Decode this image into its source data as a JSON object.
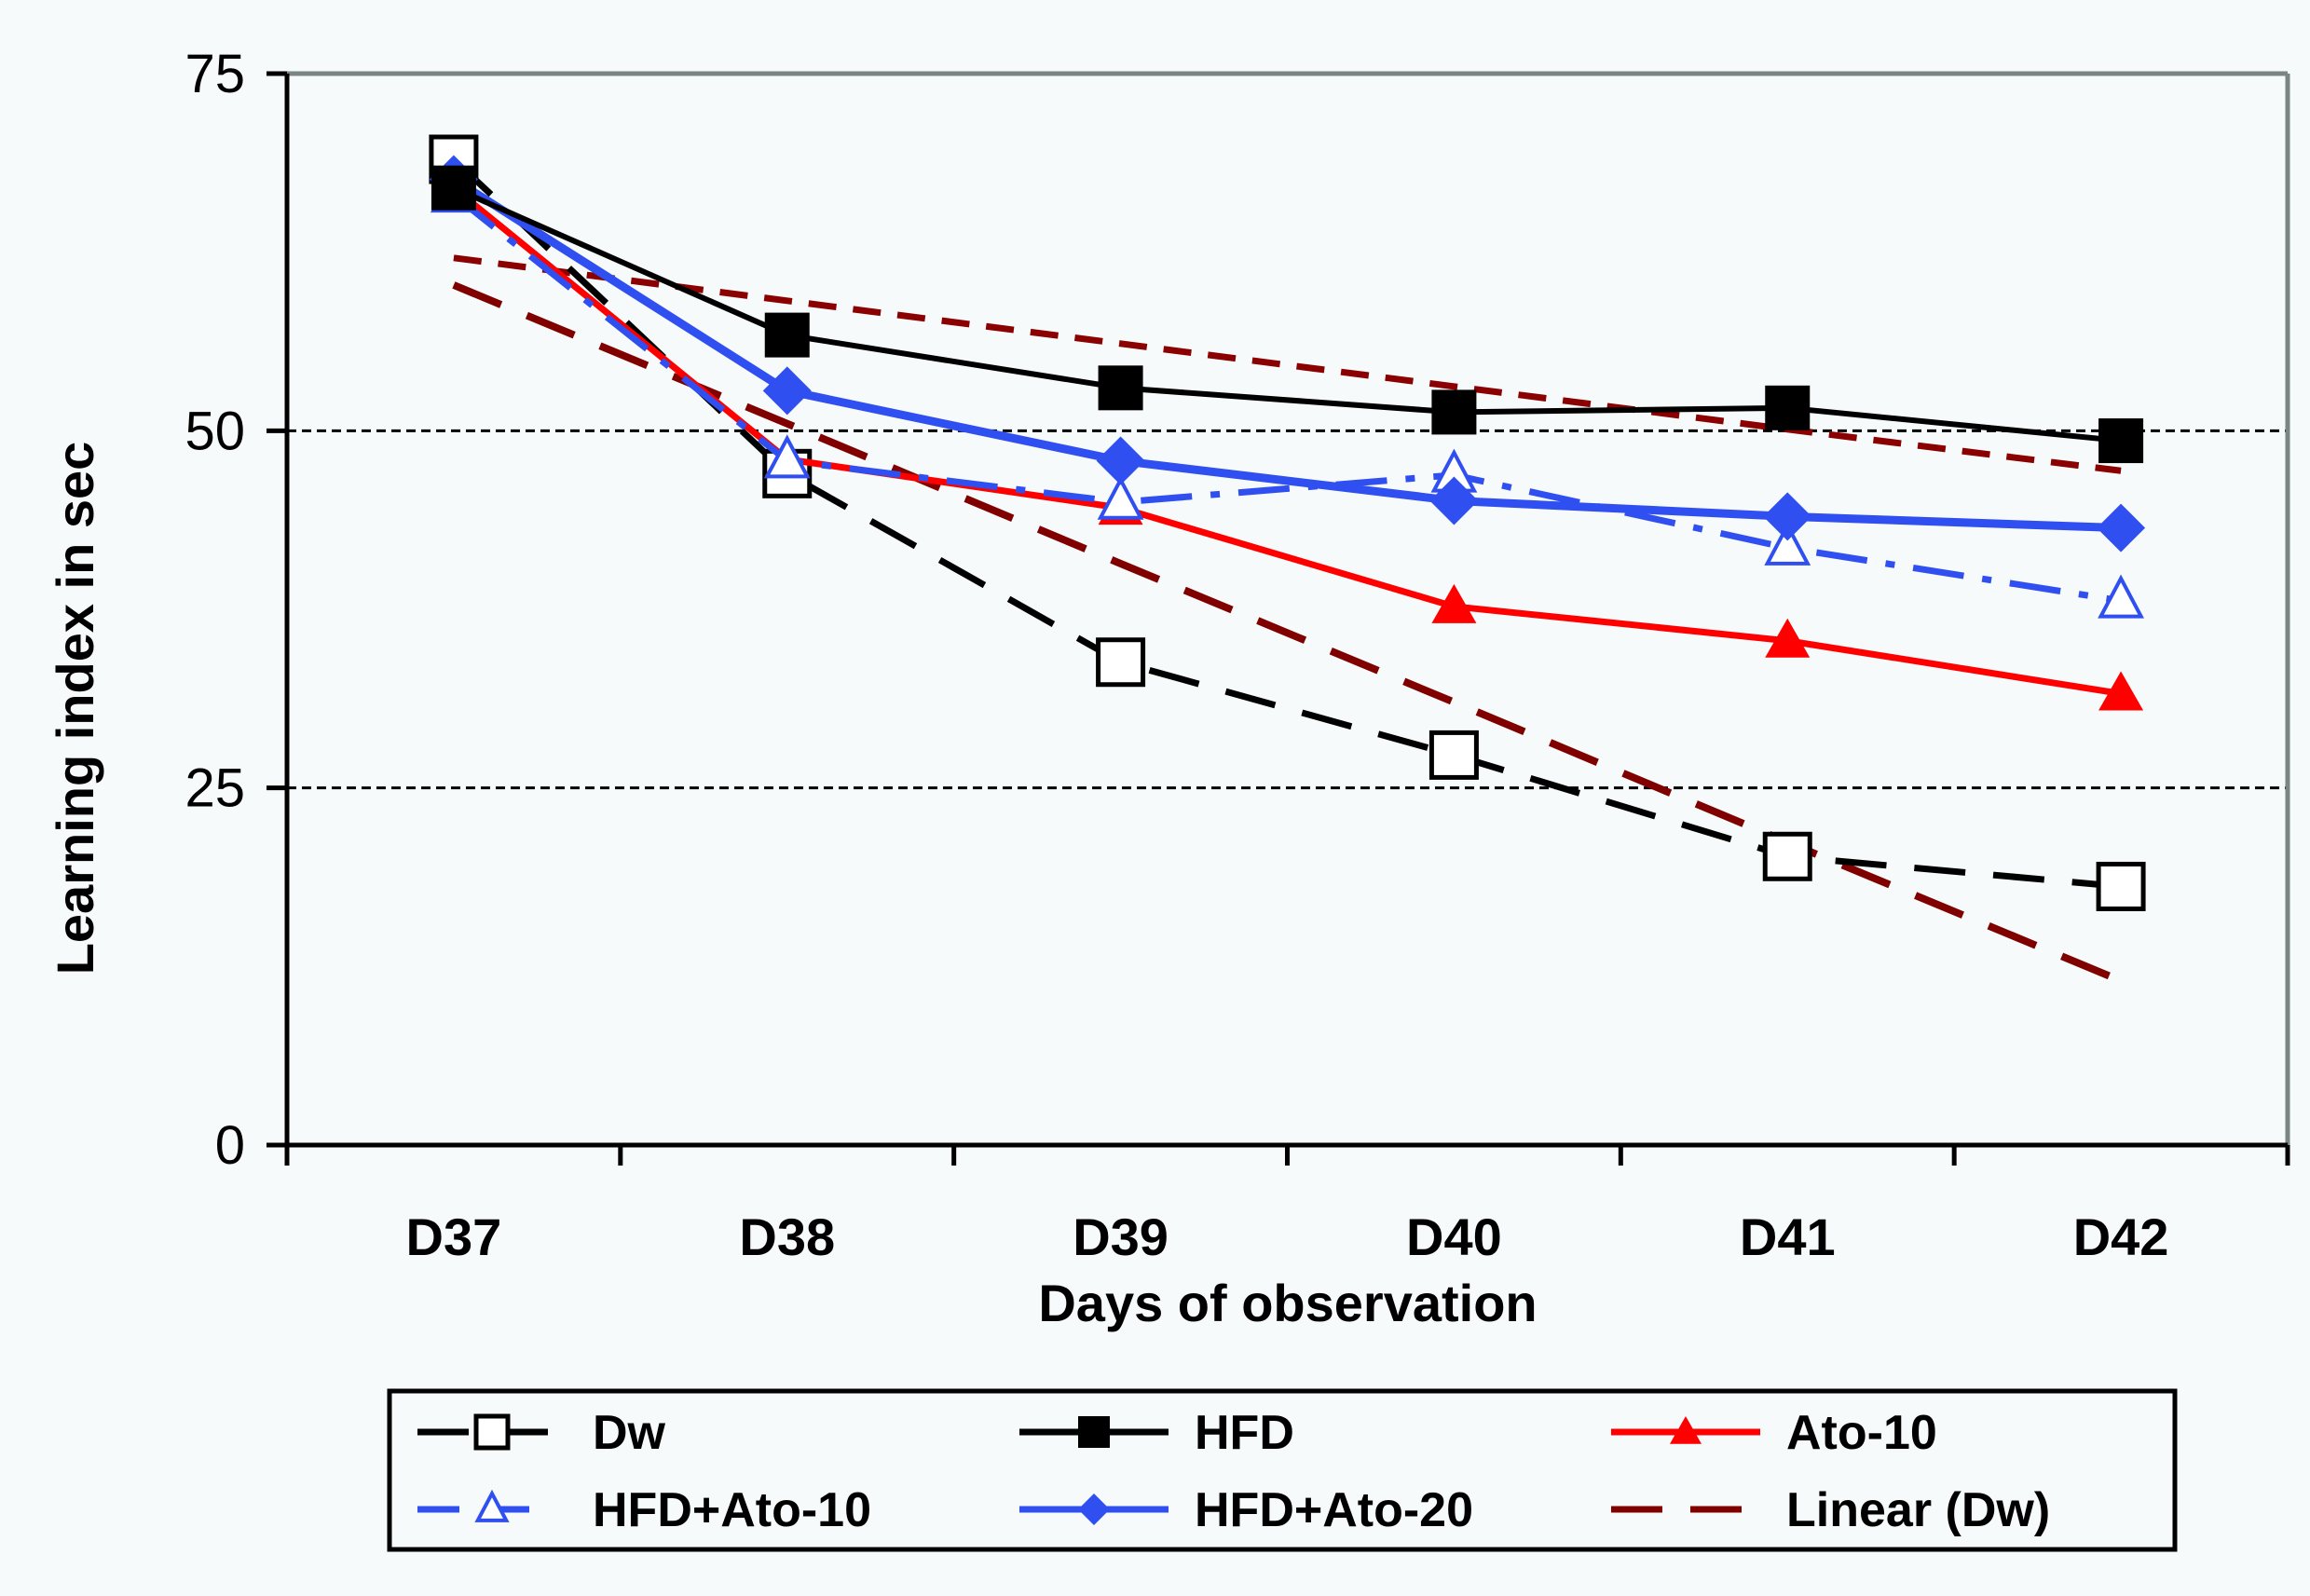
{
  "chart_data": {
    "type": "line",
    "title": "",
    "xlabel": "Days of observation",
    "ylabel": "Learning index in sec",
    "categories": [
      "D37",
      "D38",
      "D39",
      "D40",
      "D41",
      "D42"
    ],
    "ylim": [
      0,
      75
    ],
    "yticks": [
      0,
      25,
      50,
      75
    ],
    "grid": "horizontal dashed at 25 and 50",
    "legend_position": "bottom",
    "series": [
      {
        "name": "Dw",
        "color": "#000000",
        "line": "long-dash",
        "marker": "open-square",
        "values": [
          69.0,
          47.0,
          33.8,
          27.3,
          20.2,
          18.1
        ]
      },
      {
        "name": "HFD",
        "color": "#000000",
        "line": "solid",
        "marker": "filled-square",
        "values": [
          67.0,
          56.7,
          53.0,
          51.3,
          51.6,
          49.3
        ]
      },
      {
        "name": "Ato-10",
        "color": "#ff0000",
        "line": "solid",
        "marker": "filled-triangle",
        "values": [
          67.0,
          48.0,
          44.6,
          37.7,
          35.3,
          31.6
        ]
      },
      {
        "name": "HFD+Ato-10",
        "color": "#2f4ff0",
        "line": "dash-dot",
        "marker": "open-triangle",
        "values": [
          66.5,
          47.9,
          45.0,
          46.9,
          41.8,
          38.1
        ]
      },
      {
        "name": "HFD+Ato-20",
        "color": "#2f4ff0",
        "line": "solid",
        "marker": "filled-diamond",
        "values": [
          67.6,
          52.8,
          47.9,
          45.1,
          44.0,
          43.2
        ]
      },
      {
        "name": "Linear (Dw)",
        "color": "#800000",
        "line": "long-dash",
        "marker": "none",
        "values": [
          60.2,
          50.5,
          40.7,
          31.0,
          21.2,
          11.5
        ]
      }
    ],
    "extra_lines": [
      {
        "name": "",
        "description": "unlabeled linear trend (short-dash)",
        "color": "#8b0000",
        "line": "short-dash",
        "values": [
          62.1,
          59.1,
          56.1,
          53.1,
          50.1,
          47.2
        ]
      }
    ]
  }
}
